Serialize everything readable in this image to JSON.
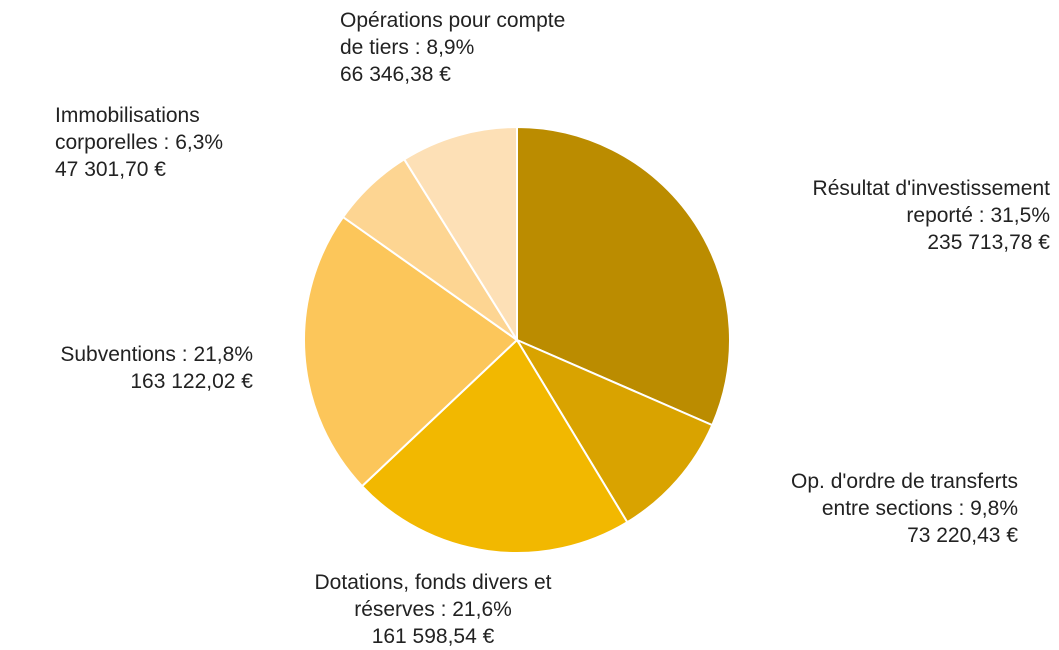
{
  "chart_data": {
    "type": "pie",
    "categories": [
      "Résultat d'investissement reporté",
      "Op. d'ordre de transferts entre sections",
      "Dotations, fonds divers et réserves",
      "Subventions",
      "Immobilisations corporelles",
      "Opérations pour compte de tiers"
    ],
    "values": [
      235713.78,
      73220.43,
      161598.54,
      163122.02,
      47301.7,
      66346.38
    ],
    "value_labels": [
      "235 713,78 €",
      "73 220,43 €",
      "161 598,54 €",
      "163 122,02 €",
      "47 301,70 €",
      "66 346,38 €"
    ],
    "percents": [
      31.5,
      9.8,
      21.6,
      21.8,
      6.3,
      8.9
    ],
    "percent_labels": [
      "31,5%",
      "9,8%",
      "21,6%",
      "21,8%",
      "6,3%",
      "8,9%"
    ],
    "separator": " : ",
    "colors": [
      "#bb8c00",
      "#d9a300",
      "#f2b800",
      "#fcc65a",
      "#fdd592",
      "#fde0b6"
    ]
  }
}
